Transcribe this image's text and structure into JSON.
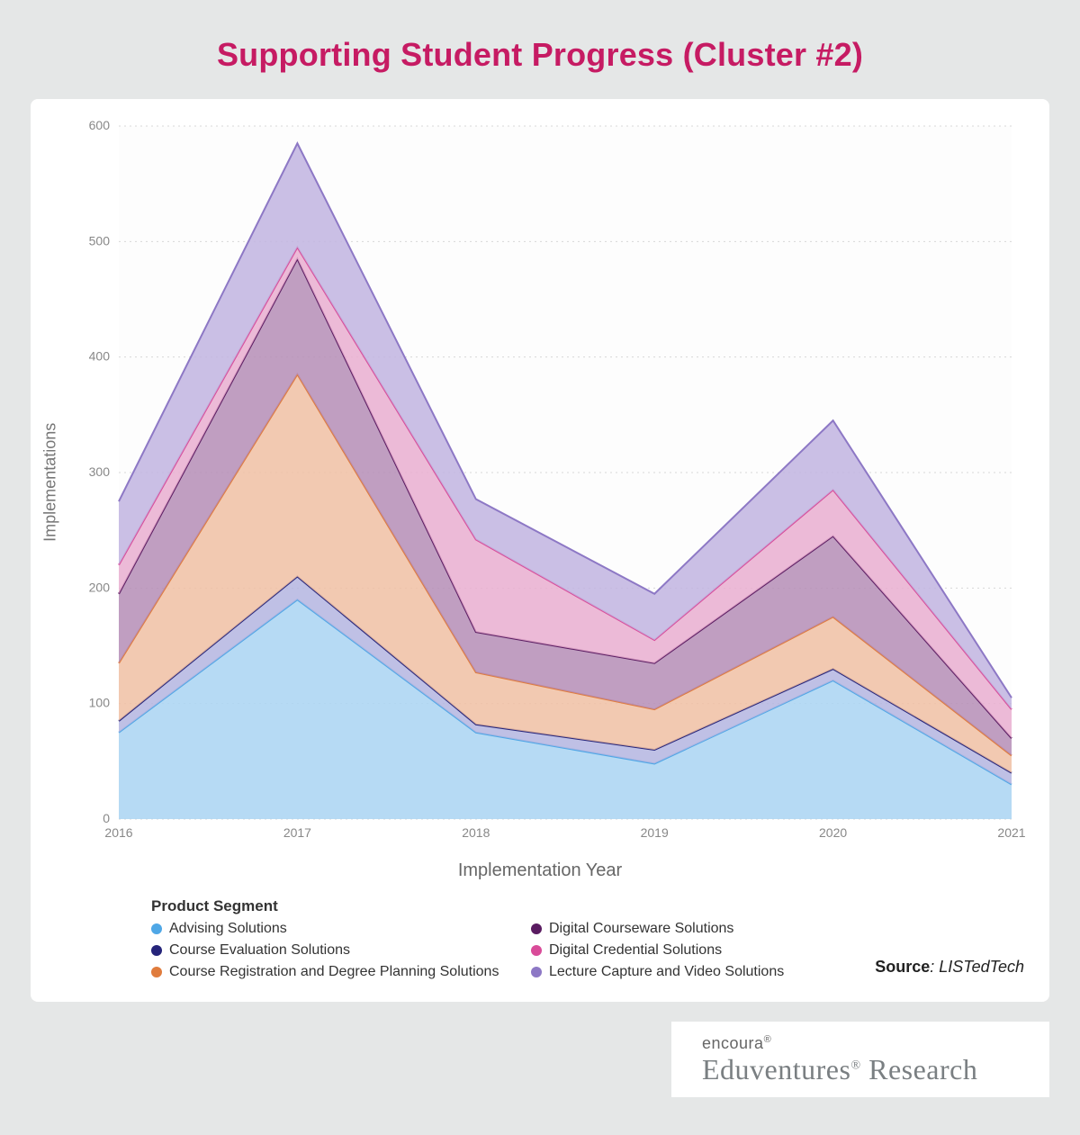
{
  "title": "Supporting Student Progress (Cluster #2)",
  "chart": {
    "type": "stacked-area",
    "background_color": "#ffffff",
    "page_background": "#e5e7e7",
    "grid_color": "#d8d8d8",
    "plot_fill": "#fdfdfd",
    "ylabel": "Implementations",
    "xlabel": "Implementation Year",
    "title_color": "#c61b63",
    "title_fontsize": 36,
    "label_fontsize": 18,
    "tick_fontsize": 14,
    "ylim": [
      0,
      600
    ],
    "ytick_step": 100,
    "categories": [
      "2016",
      "2017",
      "2018",
      "2019",
      "2020",
      "2021"
    ],
    "legend_title": "Product Segment",
    "series": [
      {
        "key": "advising",
        "label": "Advising Solutions",
        "fill": "#a9d4f2",
        "stroke": "#4fa7e6",
        "values": [
          75,
          190,
          75,
          48,
          120,
          30
        ]
      },
      {
        "key": "course_eval",
        "label": "Course Evaluation Solutions",
        "fill": "#b4b5e1",
        "stroke": "#25247a",
        "values": [
          10,
          20,
          7,
          12,
          10,
          10
        ]
      },
      {
        "key": "course_reg",
        "label": "Course Registration and Degree Planning Solutions",
        "fill": "#f0c0a3",
        "stroke": "#e07c3d",
        "values": [
          50,
          175,
          45,
          35,
          45,
          15
        ]
      },
      {
        "key": "digital_courseware",
        "label": "Digital Courseware Solutions",
        "fill": "#b58db6",
        "stroke": "#5a1c61",
        "values": [
          60,
          100,
          35,
          40,
          70,
          15
        ]
      },
      {
        "key": "digital_credential",
        "label": "Digital Credential Solutions",
        "fill": "#e9aed0",
        "stroke": "#d94b99",
        "values": [
          25,
          10,
          80,
          20,
          40,
          25
        ]
      },
      {
        "key": "lecture_capture",
        "label": "Lecture Capture and Video Solutions",
        "fill": "#c1b4e0",
        "stroke": "#8d78c5",
        "values": [
          55,
          90,
          35,
          40,
          60,
          10
        ]
      }
    ]
  },
  "source": {
    "label": "Source",
    "value": "LISTedTech"
  },
  "logo": {
    "top": "encoura",
    "bottom_a": "Eduventures",
    "bottom_b": "Research"
  }
}
